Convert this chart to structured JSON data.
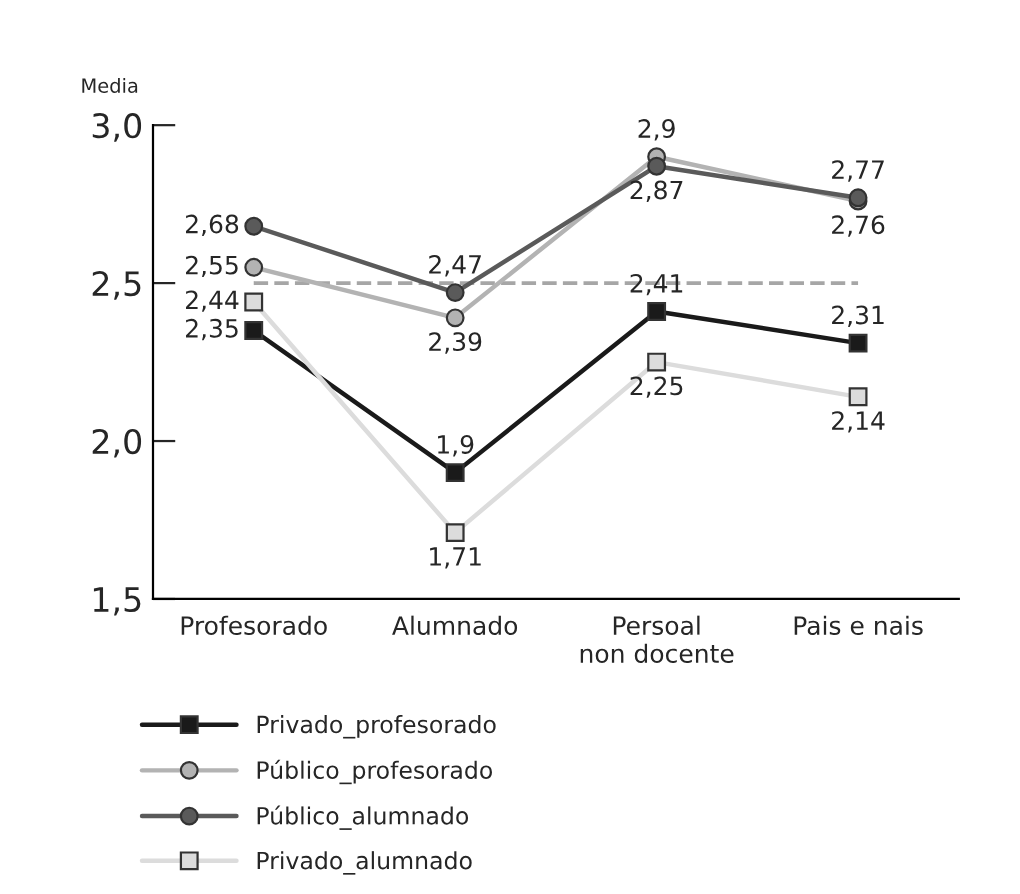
{
  "chart_data": {
    "type": "line",
    "ylabel": "Media",
    "categories": [
      "Profesorado",
      "Alumnado",
      "Persoal\nnon docente",
      "Pais e nais"
    ],
    "series": [
      {
        "name": "Privado_profesorado",
        "color": "#1a1a1a",
        "marker": "square",
        "values": [
          2.35,
          1.9,
          2.41,
          2.31
        ],
        "value_labels": [
          "2,35",
          "1,9",
          "2,41",
          "2,31"
        ]
      },
      {
        "name": "Público_profesorado",
        "color": "#b3b3b3",
        "marker": "circle",
        "values": [
          2.55,
          2.39,
          2.9,
          2.76
        ],
        "value_labels": [
          "2,55",
          "2,39",
          "2,9",
          "2,76"
        ]
      },
      {
        "name": "Público_alumnado",
        "color": "#5a5a5a",
        "marker": "circle",
        "values": [
          2.68,
          2.47,
          2.87,
          2.77
        ],
        "value_labels": [
          "2,68",
          "2,47",
          "2,87",
          "2,77"
        ]
      },
      {
        "name": "Privado_alumnado",
        "color": "#dcdcdc",
        "marker": "square",
        "values": [
          2.44,
          1.71,
          2.25,
          2.14
        ],
        "value_labels": [
          "2,44",
          "1,71",
          "2,25",
          "2,14"
        ]
      }
    ],
    "ylim": [
      1.5,
      3.0
    ],
    "yticks": [
      {
        "value": 1.5,
        "label": "1,5"
      },
      {
        "value": 2.0,
        "label": "2,0"
      },
      {
        "value": 2.5,
        "label": "2,5"
      },
      {
        "value": 3.0,
        "label": "3,0"
      }
    ],
    "ref_lines": [
      {
        "axis": "y",
        "value": 2.5,
        "color": "#a6a6a6",
        "line_style": "dashed"
      }
    ],
    "grid": false,
    "legend": "bottom",
    "line_style": "solid"
  }
}
